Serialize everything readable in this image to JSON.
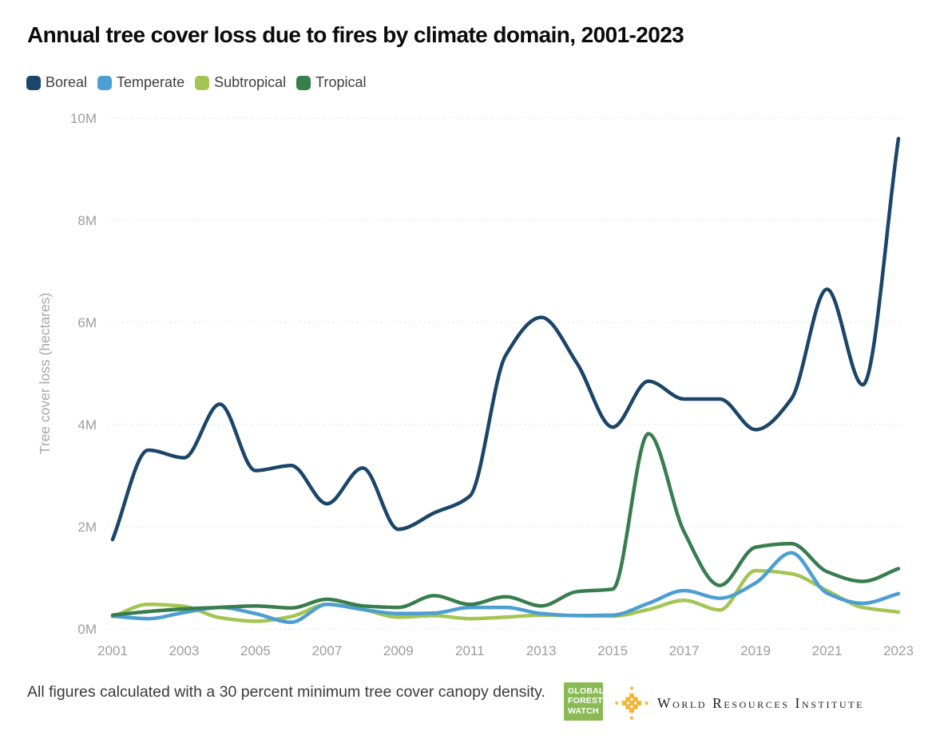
{
  "title": "Annual tree cover loss due to fires by climate domain, 2001-2023",
  "legend": [
    {
      "label": "Boreal",
      "color": "#1b4569"
    },
    {
      "label": "Temperate",
      "color": "#4d9ed3"
    },
    {
      "label": "Subtropical",
      "color": "#a3c653"
    },
    {
      "label": "Tropical",
      "color": "#387d4e"
    }
  ],
  "y_axis": {
    "title": "Tree cover loss (hectares)",
    "ticks": [
      {
        "label": "0M",
        "value": 0
      },
      {
        "label": "2M",
        "value": 2
      },
      {
        "label": "4M",
        "value": 4
      },
      {
        "label": "6M",
        "value": 6
      },
      {
        "label": "8M",
        "value": 8
      },
      {
        "label": "10M",
        "value": 10
      }
    ]
  },
  "x_axis": {
    "ticks": [
      "2001",
      "2003",
      "2005",
      "2007",
      "2009",
      "2011",
      "2013",
      "2015",
      "2017",
      "2019",
      "2021",
      "2023"
    ]
  },
  "chart_data": {
    "type": "line",
    "title": "Annual tree cover loss due to fires by climate domain, 2001-2023",
    "xlabel": "",
    "ylabel": "Tree cover loss (hectares)",
    "units": "millions of hectares",
    "ylim": [
      0,
      10
    ],
    "xlim": [
      2001,
      2023
    ],
    "grid": true,
    "legend_position": "top",
    "x": [
      2001,
      2002,
      2003,
      2004,
      2005,
      2006,
      2007,
      2008,
      2009,
      2010,
      2011,
      2012,
      2013,
      2014,
      2015,
      2016,
      2017,
      2018,
      2019,
      2020,
      2021,
      2022,
      2023
    ],
    "series": [
      {
        "name": "Boreal",
        "color": "#1b4569",
        "values": [
          1.75,
          3.5,
          3.35,
          4.4,
          3.1,
          3.2,
          2.45,
          3.15,
          1.95,
          2.27,
          2.6,
          5.35,
          6.1,
          5.2,
          3.95,
          4.85,
          4.5,
          4.5,
          3.9,
          4.5,
          6.65,
          4.78,
          9.6
        ]
      },
      {
        "name": "Temperate",
        "color": "#4d9ed3",
        "values": [
          0.25,
          0.2,
          0.32,
          0.42,
          0.3,
          0.13,
          0.48,
          0.38,
          0.3,
          0.31,
          0.42,
          0.42,
          0.3,
          0.26,
          0.27,
          0.5,
          0.75,
          0.6,
          0.9,
          1.49,
          0.7,
          0.5,
          0.69
        ]
      },
      {
        "name": "Subtropical",
        "color": "#a3c653",
        "values": [
          0.24,
          0.48,
          0.44,
          0.22,
          0.15,
          0.24,
          0.48,
          0.38,
          0.23,
          0.26,
          0.2,
          0.23,
          0.27,
          0.26,
          0.25,
          0.38,
          0.56,
          0.37,
          1.14,
          1.08,
          0.75,
          0.42,
          0.33
        ]
      },
      {
        "name": "Tropical",
        "color": "#387d4e",
        "values": [
          0.27,
          0.34,
          0.39,
          0.42,
          0.45,
          0.41,
          0.58,
          0.45,
          0.42,
          0.65,
          0.48,
          0.63,
          0.45,
          0.73,
          0.78,
          3.82,
          1.9,
          0.85,
          1.6,
          1.67,
          1.12,
          0.93,
          1.18
        ]
      }
    ],
    "draw_order": [
      "Subtropical",
      "Temperate",
      "Tropical",
      "Boreal"
    ]
  },
  "footer": {
    "note": "All figures calculated with a 30 percent minimum tree cover canopy density.",
    "gfw_logo": {
      "lines": [
        "GLOBAL",
        "FOREST",
        "WATCH"
      ],
      "color": "#8bba55"
    },
    "wri_logo": {
      "text": "World Resources Institute",
      "icon_color": "#f1b434"
    }
  }
}
